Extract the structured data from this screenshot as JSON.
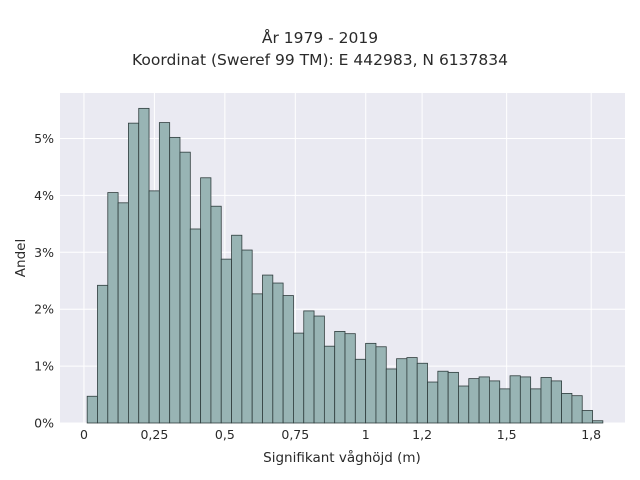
{
  "chart_data": {
    "type": "bar",
    "title": "År 1979 - 2019",
    "subtitle": "Koordinat (Sweref 99 TM): E 442983, N 6137834",
    "xlabel": "Signifikant våghöjd (m)",
    "ylabel": "Andel",
    "xlim": [
      -0.085,
      1.92
    ],
    "ylim": [
      0,
      0.058
    ],
    "x_ticks": [
      0,
      0.25,
      0.5,
      0.75,
      1,
      1.2,
      1.5,
      1.8
    ],
    "x_tick_labels": [
      "0",
      "0,25",
      "0,5",
      "0,75",
      "1",
      "1,2",
      "1,5",
      "1,8"
    ],
    "y_ticks": [
      0,
      0.01,
      0.02,
      0.03,
      0.04,
      0.05
    ],
    "y_tick_labels": [
      "0%",
      "1%",
      "2%",
      "3%",
      "4%",
      "5%"
    ],
    "grid": true,
    "bin_start": 0.0114,
    "bin_width": 0.0366,
    "values": [
      0.0047,
      0.0242,
      0.0405,
      0.0387,
      0.0527,
      0.0553,
      0.0408,
      0.0528,
      0.0502,
      0.0476,
      0.0341,
      0.0431,
      0.0381,
      0.0288,
      0.033,
      0.0304,
      0.0227,
      0.026,
      0.0246,
      0.0224,
      0.0158,
      0.0197,
      0.0188,
      0.0135,
      0.0161,
      0.0157,
      0.0112,
      0.014,
      0.0134,
      0.0095,
      0.0113,
      0.0115,
      0.0105,
      0.0072,
      0.0091,
      0.0089,
      0.0065,
      0.0078,
      0.0081,
      0.0074,
      0.006,
      0.0083,
      0.0081,
      0.006,
      0.008,
      0.0074,
      0.0052,
      0.0048,
      0.0022,
      0.0004
    ],
    "colors": {
      "bar_fill": "#98b4b4",
      "bar_stroke": "#2f3d3d",
      "plot_bg": "#eaeaf2",
      "grid": "#ffffff"
    }
  }
}
